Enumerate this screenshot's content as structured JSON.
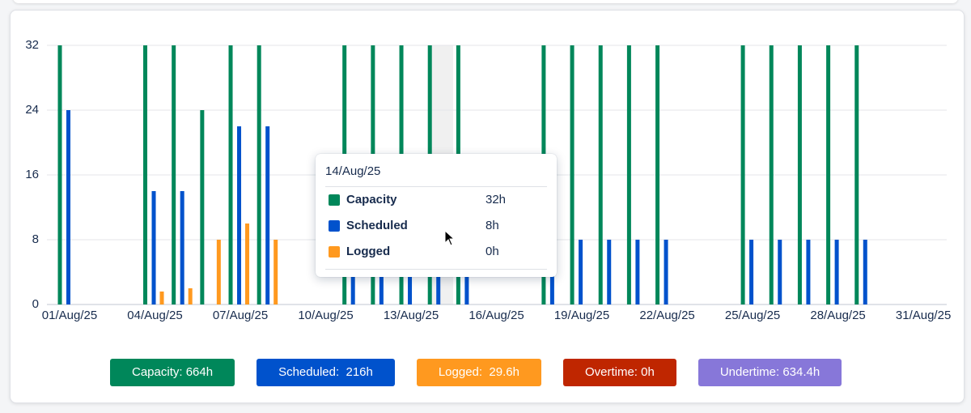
{
  "chart_data": {
    "type": "bar",
    "categories": [
      "01/Aug/25",
      null,
      null,
      "04/Aug/25",
      null,
      null,
      "07/Aug/25",
      null,
      null,
      "10/Aug/25",
      null,
      null,
      "13/Aug/25",
      null,
      null,
      "16/Aug/25",
      null,
      null,
      "19/Aug/25",
      null,
      null,
      "22/Aug/25",
      null,
      null,
      "25/Aug/25",
      null,
      null,
      "28/Aug/25",
      null,
      null,
      "31/Aug/25"
    ],
    "series": [
      {
        "name": "Capacity",
        "color": "#00875a",
        "values": [
          32,
          0,
          0,
          32,
          32,
          24,
          32,
          32,
          0,
          0,
          32,
          32,
          32,
          32,
          32,
          0,
          0,
          32,
          32,
          32,
          32,
          32,
          0,
          0,
          32,
          32,
          32,
          32,
          32,
          0,
          0
        ]
      },
      {
        "name": "Scheduled",
        "color": "#0052cc",
        "values": [
          24,
          0,
          0,
          14,
          14,
          0,
          22,
          22,
          0,
          0,
          8,
          8,
          8,
          8,
          8,
          0,
          0,
          8,
          8,
          8,
          8,
          8,
          0,
          0,
          8,
          8,
          8,
          8,
          8,
          0,
          0
        ]
      },
      {
        "name": "Logged",
        "color": "#ff991f",
        "values": [
          0,
          0,
          0,
          1.6,
          2,
          8,
          10,
          8,
          0,
          0,
          0,
          0,
          0,
          0,
          0,
          0,
          0,
          0,
          0,
          0,
          0,
          0,
          0,
          0,
          0,
          0,
          0,
          0,
          0,
          0,
          0
        ]
      }
    ],
    "ylim": [
      0,
      32
    ],
    "yticks": [
      0,
      8,
      16,
      24,
      32
    ],
    "grid": true
  },
  "tooltip": {
    "title": "14/Aug/25",
    "values": [
      "32h",
      "8h",
      "0h"
    ]
  },
  "summary": [
    {
      "label": "Capacity: 664h",
      "color": "#00875a"
    },
    {
      "label": "Scheduled:  216h",
      "color": "#0052cc"
    },
    {
      "label": "Logged:  29.6h",
      "color": "#ff991f"
    },
    {
      "label": "Overtime: 0h",
      "color": "#bf2600"
    },
    {
      "label": "Undertime: 634.4h",
      "color": "#8777d9"
    }
  ]
}
